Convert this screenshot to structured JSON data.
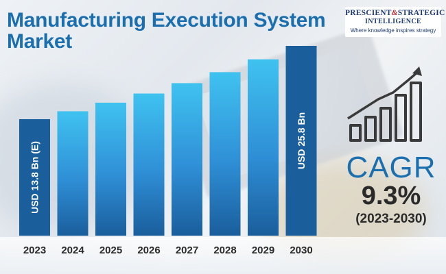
{
  "header": {
    "title": "Manufacturing Execution System Market"
  },
  "logo": {
    "name_left": "PRESCIENT",
    "name_amp": "&",
    "name_right": "STRATEGIC",
    "name_line2": "INTELLIGENCE",
    "tagline": "Where knowledge inspires strategy"
  },
  "cagr": {
    "label": "CAGR",
    "value": "9.3%",
    "period": "(2023-2030)"
  },
  "colors": {
    "title": "#1c6fae",
    "bar_light": "#3fc2f0",
    "bar_mid": "#2f8fd6",
    "bar_dark": "#1a5e9c",
    "bar_highlight": "#1a5e9c",
    "icon": "#3a3a3a"
  },
  "icons": [
    "growth-chart-icon",
    "up-arrow-icon"
  ],
  "chart_data": {
    "type": "bar",
    "title": "Manufacturing Execution System Market",
    "categories": [
      "2023",
      "2024",
      "2025",
      "2026",
      "2027",
      "2028",
      "2029",
      "2030"
    ],
    "values": [
      13.8,
      15.1,
      16.5,
      18.0,
      19.7,
      21.5,
      23.6,
      25.8
    ],
    "unit": "USD Bn",
    "data_labels": {
      "2023": "USD 13.8 Bn (E)",
      "2030": "USD 25.8 Bn"
    },
    "xlabel": "",
    "ylabel": "",
    "ylim": [
      0,
      25.8
    ],
    "grid": false,
    "legend": "none"
  }
}
